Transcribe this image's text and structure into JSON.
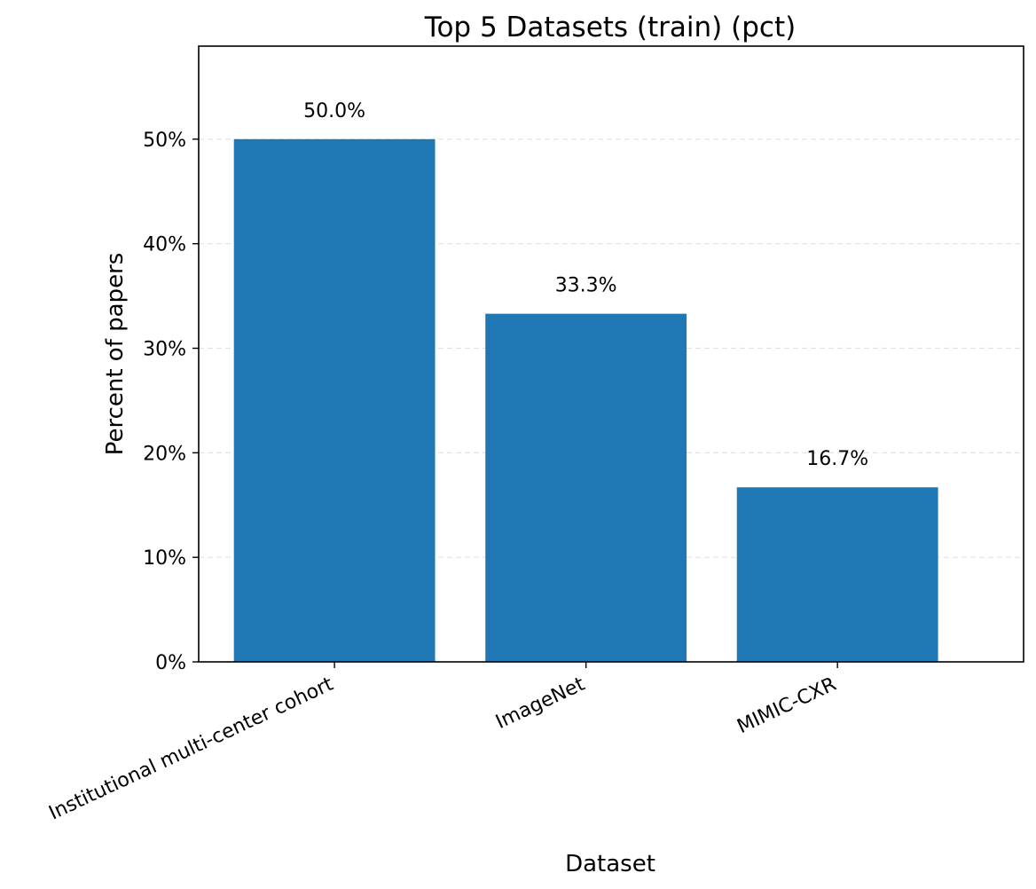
{
  "chart_data": {
    "type": "bar",
    "title": "Top 5 Datasets (train) (pct)",
    "xlabel": "Dataset",
    "ylabel": "Percent of papers",
    "categories": [
      "Institutional multi-center cohort",
      "ImageNet",
      "MIMIC-CXR"
    ],
    "values": [
      50.0,
      33.3,
      16.7
    ],
    "data_labels": [
      "50.0%",
      "33.3%",
      "16.7%"
    ],
    "ylim": [
      0,
      58.9
    ],
    "yticks": [
      0,
      10,
      20,
      30,
      40,
      50
    ],
    "ytick_labels": [
      "0%",
      "10%",
      "20%",
      "30%",
      "40%",
      "50%"
    ],
    "bar_color": "#1f77b4",
    "grid": "y-dashed",
    "legend": "none"
  }
}
